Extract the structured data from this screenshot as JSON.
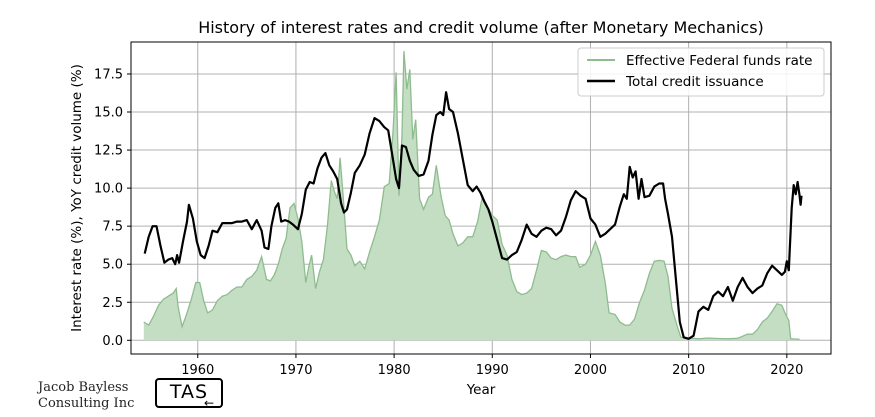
{
  "chart_data": {
    "type": "area",
    "title": "History of interest rates and credit volume (after Monetary Mechanics)",
    "xlabel": "Year",
    "ylabel": "Interest rate (%), YoY credit volume (%)",
    "xlim": [
      1953.2,
      2024.5
    ],
    "ylim": [
      -0.9,
      19.6
    ],
    "xticks": [
      1960,
      1970,
      1980,
      1990,
      2000,
      2010,
      2020
    ],
    "yticks": [
      0.0,
      2.5,
      5.0,
      7.5,
      10.0,
      12.5,
      15.0,
      17.5
    ],
    "xtick_labels": [
      "1960",
      "1970",
      "1980",
      "1990",
      "2000",
      "2010",
      "2020"
    ],
    "ytick_labels": [
      "0.0",
      "2.5",
      "5.0",
      "7.5",
      "10.0",
      "12.5",
      "15.0",
      "17.5"
    ],
    "grid": true,
    "legend_position": "top-right",
    "series": [
      {
        "name": "Effective Federal funds rate",
        "style": "filled-area",
        "color": "#8fbc8f",
        "fill": "#c3dec3",
        "points": [
          [
            1954.5,
            1.2
          ],
          [
            1955.0,
            1.0
          ],
          [
            1955.5,
            1.6
          ],
          [
            1956.0,
            2.3
          ],
          [
            1956.5,
            2.7
          ],
          [
            1957.0,
            2.9
          ],
          [
            1957.5,
            3.1
          ],
          [
            1957.8,
            3.4
          ],
          [
            1958.0,
            2.2
          ],
          [
            1958.4,
            0.9
          ],
          [
            1958.8,
            1.6
          ],
          [
            1959.3,
            2.6
          ],
          [
            1959.8,
            3.8
          ],
          [
            1960.2,
            3.8
          ],
          [
            1960.6,
            2.6
          ],
          [
            1961.0,
            1.8
          ],
          [
            1961.5,
            2.0
          ],
          [
            1962.0,
            2.6
          ],
          [
            1962.5,
            2.9
          ],
          [
            1963.0,
            3.0
          ],
          [
            1963.5,
            3.3
          ],
          [
            1964.0,
            3.5
          ],
          [
            1964.5,
            3.5
          ],
          [
            1965.0,
            4.0
          ],
          [
            1965.5,
            4.2
          ],
          [
            1966.0,
            4.6
          ],
          [
            1966.5,
            5.5
          ],
          [
            1967.0,
            4.0
          ],
          [
            1967.4,
            3.9
          ],
          [
            1967.8,
            4.3
          ],
          [
            1968.2,
            5.0
          ],
          [
            1968.6,
            6.0
          ],
          [
            1969.0,
            6.7
          ],
          [
            1969.4,
            8.7
          ],
          [
            1969.8,
            9.0
          ],
          [
            1970.2,
            8.0
          ],
          [
            1970.6,
            6.5
          ],
          [
            1971.0,
            3.8
          ],
          [
            1971.3,
            4.8
          ],
          [
            1971.6,
            5.6
          ],
          [
            1972.0,
            3.4
          ],
          [
            1972.4,
            4.5
          ],
          [
            1972.8,
            5.3
          ],
          [
            1973.2,
            7.5
          ],
          [
            1973.6,
            10.5
          ],
          [
            1973.9,
            9.8
          ],
          [
            1974.2,
            9.3
          ],
          [
            1974.5,
            12.0
          ],
          [
            1974.8,
            9.5
          ],
          [
            1975.2,
            6.0
          ],
          [
            1975.6,
            5.6
          ],
          [
            1976.0,
            4.9
          ],
          [
            1976.5,
            5.2
          ],
          [
            1977.0,
            4.7
          ],
          [
            1977.5,
            5.8
          ],
          [
            1978.0,
            6.8
          ],
          [
            1978.5,
            7.9
          ],
          [
            1979.0,
            10.1
          ],
          [
            1979.5,
            10.3
          ],
          [
            1979.9,
            13.8
          ],
          [
            1980.2,
            17.6
          ],
          [
            1980.5,
            9.5
          ],
          [
            1980.8,
            13.5
          ],
          [
            1981.0,
            19.0
          ],
          [
            1981.3,
            16.5
          ],
          [
            1981.6,
            17.8
          ],
          [
            1981.9,
            13.2
          ],
          [
            1982.2,
            14.5
          ],
          [
            1982.6,
            9.3
          ],
          [
            1983.0,
            8.6
          ],
          [
            1983.5,
            9.4
          ],
          [
            1983.9,
            9.6
          ],
          [
            1984.3,
            11.5
          ],
          [
            1984.8,
            9.4
          ],
          [
            1985.2,
            8.2
          ],
          [
            1985.6,
            7.9
          ],
          [
            1986.0,
            7.0
          ],
          [
            1986.5,
            6.2
          ],
          [
            1987.0,
            6.4
          ],
          [
            1987.5,
            6.8
          ],
          [
            1988.0,
            6.8
          ],
          [
            1988.5,
            7.8
          ],
          [
            1989.0,
            9.5
          ],
          [
            1989.5,
            8.8
          ],
          [
            1990.0,
            8.2
          ],
          [
            1990.5,
            7.9
          ],
          [
            1991.0,
            6.3
          ],
          [
            1991.5,
            5.6
          ],
          [
            1992.0,
            4.0
          ],
          [
            1992.5,
            3.2
          ],
          [
            1993.0,
            3.0
          ],
          [
            1993.5,
            3.1
          ],
          [
            1994.0,
            3.4
          ],
          [
            1994.5,
            4.6
          ],
          [
            1995.0,
            5.9
          ],
          [
            1995.5,
            5.8
          ],
          [
            1996.0,
            5.4
          ],
          [
            1996.5,
            5.3
          ],
          [
            1997.0,
            5.5
          ],
          [
            1997.5,
            5.6
          ],
          [
            1998.0,
            5.5
          ],
          [
            1998.5,
            5.5
          ],
          [
            1998.9,
            4.8
          ],
          [
            1999.5,
            5.0
          ],
          [
            2000.0,
            5.6
          ],
          [
            2000.5,
            6.5
          ],
          [
            2001.0,
            5.6
          ],
          [
            2001.5,
            3.8
          ],
          [
            2001.9,
            1.8
          ],
          [
            2002.5,
            1.7
          ],
          [
            2003.0,
            1.2
          ],
          [
            2003.5,
            1.0
          ],
          [
            2004.0,
            1.0
          ],
          [
            2004.5,
            1.4
          ],
          [
            2005.0,
            2.5
          ],
          [
            2005.5,
            3.3
          ],
          [
            2006.0,
            4.4
          ],
          [
            2006.5,
            5.2
          ],
          [
            2007.0,
            5.25
          ],
          [
            2007.5,
            5.2
          ],
          [
            2007.9,
            4.2
          ],
          [
            2008.3,
            2.1
          ],
          [
            2008.8,
            1.0
          ],
          [
            2009.2,
            0.2
          ],
          [
            2010.0,
            0.15
          ],
          [
            2011.0,
            0.1
          ],
          [
            2012.0,
            0.15
          ],
          [
            2013.0,
            0.12
          ],
          [
            2014.0,
            0.1
          ],
          [
            2015.0,
            0.13
          ],
          [
            2016.0,
            0.4
          ],
          [
            2016.5,
            0.4
          ],
          [
            2017.0,
            0.7
          ],
          [
            2017.5,
            1.2
          ],
          [
            2018.0,
            1.45
          ],
          [
            2018.5,
            1.9
          ],
          [
            2019.0,
            2.4
          ],
          [
            2019.5,
            2.3
          ],
          [
            2019.8,
            1.8
          ],
          [
            2020.2,
            1.3
          ],
          [
            2020.4,
            0.1
          ],
          [
            2021.0,
            0.08
          ],
          [
            2021.3,
            0.08
          ]
        ]
      },
      {
        "name": "Total credit issuance",
        "style": "line",
        "color": "#000000",
        "points": [
          [
            1954.6,
            5.7
          ],
          [
            1955.0,
            6.8
          ],
          [
            1955.4,
            7.5
          ],
          [
            1955.8,
            7.5
          ],
          [
            1956.2,
            6.2
          ],
          [
            1956.6,
            5.1
          ],
          [
            1957.0,
            5.3
          ],
          [
            1957.4,
            5.4
          ],
          [
            1957.7,
            5.0
          ],
          [
            1957.9,
            5.6
          ],
          [
            1958.1,
            5.1
          ],
          [
            1958.5,
            6.5
          ],
          [
            1958.9,
            7.8
          ],
          [
            1959.1,
            8.9
          ],
          [
            1959.5,
            8.0
          ],
          [
            1959.9,
            6.5
          ],
          [
            1960.3,
            5.6
          ],
          [
            1960.7,
            5.4
          ],
          [
            1961.1,
            6.2
          ],
          [
            1961.5,
            7.2
          ],
          [
            1962.0,
            7.1
          ],
          [
            1962.5,
            7.7
          ],
          [
            1963.0,
            7.7
          ],
          [
            1963.5,
            7.7
          ],
          [
            1964.0,
            7.8
          ],
          [
            1964.5,
            7.8
          ],
          [
            1965.0,
            7.9
          ],
          [
            1965.5,
            7.3
          ],
          [
            1966.0,
            7.9
          ],
          [
            1966.5,
            7.2
          ],
          [
            1966.8,
            6.1
          ],
          [
            1967.2,
            6.0
          ],
          [
            1967.5,
            7.5
          ],
          [
            1967.9,
            8.7
          ],
          [
            1968.2,
            9.0
          ],
          [
            1968.5,
            7.8
          ],
          [
            1968.9,
            7.9
          ],
          [
            1969.3,
            7.8
          ],
          [
            1969.7,
            7.6
          ],
          [
            1970.2,
            7.3
          ],
          [
            1970.6,
            8.3
          ],
          [
            1971.0,
            9.9
          ],
          [
            1971.4,
            10.4
          ],
          [
            1971.8,
            10.3
          ],
          [
            1972.2,
            11.3
          ],
          [
            1972.6,
            12.0
          ],
          [
            1973.0,
            12.3
          ],
          [
            1973.4,
            11.5
          ],
          [
            1973.8,
            11.1
          ],
          [
            1974.2,
            10.6
          ],
          [
            1974.6,
            9.0
          ],
          [
            1974.9,
            8.4
          ],
          [
            1975.2,
            8.6
          ],
          [
            1975.6,
            9.7
          ],
          [
            1976.0,
            11.0
          ],
          [
            1976.5,
            11.5
          ],
          [
            1977.0,
            12.2
          ],
          [
            1977.5,
            13.6
          ],
          [
            1978.0,
            14.6
          ],
          [
            1978.5,
            14.4
          ],
          [
            1979.0,
            14.0
          ],
          [
            1979.4,
            13.8
          ],
          [
            1979.8,
            12.2
          ],
          [
            1980.2,
            10.6
          ],
          [
            1980.5,
            10.0
          ],
          [
            1980.8,
            12.8
          ],
          [
            1981.2,
            12.7
          ],
          [
            1981.6,
            11.8
          ],
          [
            1982.0,
            11.2
          ],
          [
            1982.5,
            10.8
          ],
          [
            1983.0,
            10.9
          ],
          [
            1983.5,
            11.8
          ],
          [
            1983.9,
            13.5
          ],
          [
            1984.3,
            14.8
          ],
          [
            1984.7,
            15.0
          ],
          [
            1985.0,
            14.8
          ],
          [
            1985.3,
            16.3
          ],
          [
            1985.6,
            15.2
          ],
          [
            1986.0,
            15.0
          ],
          [
            1986.5,
            13.6
          ],
          [
            1987.0,
            11.9
          ],
          [
            1987.5,
            10.2
          ],
          [
            1988.0,
            9.8
          ],
          [
            1988.4,
            10.1
          ],
          [
            1988.8,
            9.7
          ],
          [
            1989.2,
            9.1
          ],
          [
            1989.6,
            8.6
          ],
          [
            1990.0,
            7.8
          ],
          [
            1990.5,
            6.6
          ],
          [
            1991.0,
            5.4
          ],
          [
            1991.5,
            5.3
          ],
          [
            1992.0,
            5.6
          ],
          [
            1992.5,
            5.8
          ],
          [
            1993.0,
            6.6
          ],
          [
            1993.5,
            7.6
          ],
          [
            1994.0,
            7.0
          ],
          [
            1994.5,
            6.8
          ],
          [
            1995.0,
            7.2
          ],
          [
            1995.5,
            7.4
          ],
          [
            1996.0,
            7.3
          ],
          [
            1996.5,
            6.9
          ],
          [
            1997.0,
            7.2
          ],
          [
            1997.5,
            8.1
          ],
          [
            1998.0,
            9.2
          ],
          [
            1998.5,
            9.8
          ],
          [
            1999.0,
            9.5
          ],
          [
            1999.5,
            9.3
          ],
          [
            2000.0,
            8.0
          ],
          [
            2000.5,
            7.6
          ],
          [
            2001.0,
            6.8
          ],
          [
            2001.5,
            7.0
          ],
          [
            2002.0,
            7.3
          ],
          [
            2002.5,
            7.6
          ],
          [
            2003.0,
            8.8
          ],
          [
            2003.4,
            9.6
          ],
          [
            2003.7,
            9.3
          ],
          [
            2004.0,
            11.4
          ],
          [
            2004.3,
            10.7
          ],
          [
            2004.6,
            11.1
          ],
          [
            2004.9,
            9.3
          ],
          [
            2005.2,
            10.6
          ],
          [
            2005.5,
            9.4
          ],
          [
            2006.0,
            9.5
          ],
          [
            2006.5,
            10.1
          ],
          [
            2007.0,
            10.3
          ],
          [
            2007.4,
            10.3
          ],
          [
            2007.6,
            9.3
          ],
          [
            2007.9,
            8.3
          ],
          [
            2008.3,
            6.8
          ],
          [
            2008.7,
            4.0
          ],
          [
            2009.1,
            1.2
          ],
          [
            2009.5,
            0.2
          ],
          [
            2010.0,
            0.1
          ],
          [
            2010.5,
            0.3
          ],
          [
            2011.0,
            1.9
          ],
          [
            2011.5,
            2.2
          ],
          [
            2012.0,
            2.0
          ],
          [
            2012.5,
            2.9
          ],
          [
            2013.0,
            3.2
          ],
          [
            2013.5,
            2.9
          ],
          [
            2014.0,
            3.5
          ],
          [
            2014.5,
            2.6
          ],
          [
            2015.0,
            3.5
          ],
          [
            2015.5,
            4.1
          ],
          [
            2016.0,
            3.5
          ],
          [
            2016.5,
            3.1
          ],
          [
            2017.0,
            3.4
          ],
          [
            2017.5,
            3.6
          ],
          [
            2018.0,
            4.4
          ],
          [
            2018.5,
            4.9
          ],
          [
            2019.0,
            4.6
          ],
          [
            2019.5,
            4.3
          ],
          [
            2019.8,
            4.5
          ],
          [
            2020.0,
            5.2
          ],
          [
            2020.2,
            4.6
          ],
          [
            2020.5,
            8.7
          ],
          [
            2020.7,
            10.2
          ],
          [
            2020.9,
            9.6
          ],
          [
            2021.1,
            10.4
          ],
          [
            2021.3,
            9.5
          ],
          [
            2021.4,
            8.9
          ],
          [
            2021.5,
            9.5
          ]
        ]
      }
    ]
  },
  "watermark": {
    "line1": "Jacob Bayless",
    "line2": "Consulting Inc",
    "logo_text": "TAS"
  }
}
